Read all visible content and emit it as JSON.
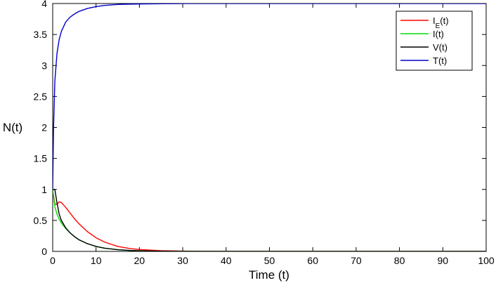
{
  "chart_data": {
    "type": "line",
    "title": "",
    "xlabel": "Time (t)",
    "ylabel": "N(t)",
    "xlim": [
      0,
      100
    ],
    "ylim": [
      0,
      4
    ],
    "x_ticks": [
      0,
      10,
      20,
      30,
      40,
      50,
      60,
      70,
      80,
      90,
      100
    ],
    "y_ticks": [
      0,
      0.5,
      1,
      1.5,
      2,
      2.5,
      3,
      3.5,
      4
    ],
    "y_tick_labels": [
      "0",
      "0.5",
      "1",
      "1.5",
      "2",
      "2.5",
      "3",
      "3.5",
      "4"
    ],
    "grid": false,
    "legend_position": "top-right",
    "series": [
      {
        "name": "I_E(t)",
        "color": "#ff0000",
        "x": [
          0,
          0.5,
          1,
          1.5,
          2,
          3,
          4,
          5,
          6,
          8,
          10,
          12,
          15,
          18,
          20,
          25,
          30,
          35,
          40,
          50,
          60,
          70,
          80,
          90,
          100
        ],
        "y": [
          1.0,
          0.76,
          0.76,
          0.8,
          0.79,
          0.71,
          0.62,
          0.53,
          0.45,
          0.32,
          0.22,
          0.15,
          0.08,
          0.045,
          0.03,
          0.012,
          0.005,
          0.002,
          0.001,
          0,
          0,
          0,
          0,
          0,
          0
        ]
      },
      {
        "name": "I(t)",
        "color": "#00dd00",
        "x": [
          0,
          0.5,
          1,
          1.5,
          2,
          3,
          4,
          5,
          6,
          8,
          10,
          12,
          15,
          18,
          20,
          25,
          30,
          35,
          40,
          50,
          60,
          70,
          80,
          90,
          100
        ],
        "y": [
          1.0,
          0.72,
          0.6,
          0.52,
          0.46,
          0.37,
          0.3,
          0.24,
          0.19,
          0.125,
          0.08,
          0.052,
          0.028,
          0.015,
          0.01,
          0.004,
          0.0015,
          0.0005,
          0,
          0,
          0,
          0,
          0,
          0,
          0
        ]
      },
      {
        "name": "V(t)",
        "color": "#000000",
        "x": [
          0,
          0.5,
          1,
          1.5,
          2,
          3,
          4,
          5,
          6,
          8,
          10,
          12,
          15,
          18,
          20,
          25,
          30,
          35,
          40,
          50,
          60,
          70,
          80,
          90,
          100
        ],
        "y": [
          1.0,
          1.0,
          0.78,
          0.6,
          0.5,
          0.38,
          0.3,
          0.24,
          0.19,
          0.125,
          0.08,
          0.052,
          0.028,
          0.015,
          0.01,
          0.004,
          0.0015,
          0.0005,
          0,
          0,
          0,
          0,
          0,
          0,
          0
        ]
      },
      {
        "name": "T(t)",
        "color": "#0000cc",
        "x": [
          0,
          0.2,
          0.5,
          1,
          1.5,
          2,
          3,
          4,
          5,
          6,
          8,
          10,
          12,
          15,
          18,
          20,
          25,
          30,
          35,
          40,
          50,
          60,
          70,
          80,
          90,
          100
        ],
        "y": [
          1.0,
          2.0,
          2.75,
          3.2,
          3.42,
          3.55,
          3.7,
          3.78,
          3.83,
          3.87,
          3.92,
          3.95,
          3.97,
          3.985,
          3.99,
          3.993,
          3.997,
          3.999,
          4.0,
          4.0,
          4.0,
          4.0,
          4.0,
          4.0,
          4.0,
          4.0
        ]
      }
    ]
  }
}
